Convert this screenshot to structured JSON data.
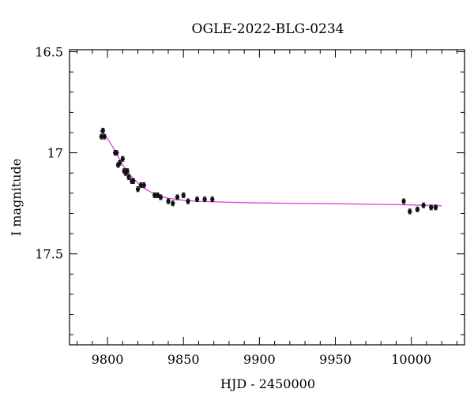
{
  "chart_data": {
    "type": "scatter",
    "title": "OGLE-2022-BLG-0234",
    "xlabel": "HJD - 2450000",
    "ylabel": "I magnitude",
    "xlim": [
      9775,
      10035
    ],
    "ylim": [
      17.95,
      16.49
    ],
    "y_inverted": true,
    "x_ticks": [
      9800,
      9850,
      9900,
      9950,
      10000
    ],
    "x_tick_labels": [
      "9800",
      "9850",
      "9900",
      "9950",
      "10000"
    ],
    "y_ticks": [
      16.5,
      17,
      17.5
    ],
    "y_tick_labels": [
      "16.5",
      "17",
      "17.5"
    ],
    "colors": {
      "points": "#111111",
      "model": "#e040e0",
      "axes": "#000000"
    },
    "series": [
      {
        "kind": "points_with_errors",
        "x": [
          9796,
          9797,
          9798,
          9805,
          9806,
          9807,
          9808,
          9810,
          9811,
          9812,
          9813,
          9814,
          9816,
          9817,
          9820,
          9822,
          9824,
          9831,
          9833,
          9835,
          9840,
          9843,
          9846,
          9850,
          9853,
          9859,
          9864,
          9869,
          9995,
          9999,
          10004,
          10008,
          10013,
          10016
        ],
        "y": [
          16.92,
          16.89,
          16.92,
          17.0,
          17.0,
          17.06,
          17.05,
          17.03,
          17.09,
          17.1,
          17.09,
          17.12,
          17.14,
          17.14,
          17.18,
          17.16,
          17.16,
          17.21,
          17.21,
          17.22,
          17.24,
          17.25,
          17.22,
          17.21,
          17.24,
          17.23,
          17.23,
          17.23,
          17.24,
          17.29,
          17.28,
          17.26,
          17.27,
          17.27
        ],
        "yerr": [
          0.01,
          0.01,
          0.01,
          0.01,
          0.01,
          0.01,
          0.01,
          0.01,
          0.01,
          0.01,
          0.01,
          0.01,
          0.01,
          0.01,
          0.012,
          0.01,
          0.01,
          0.01,
          0.01,
          0.012,
          0.012,
          0.012,
          0.01,
          0.01,
          0.012,
          0.01,
          0.01,
          0.01,
          0.01,
          0.01,
          0.01,
          0.01,
          0.01,
          0.01
        ]
      },
      {
        "kind": "model_curve",
        "x": [
          9795,
          9800,
          9805,
          9810,
          9815,
          9820,
          9825,
          9830,
          9835,
          9840,
          9850,
          9860,
          9880,
          9900,
          9950,
          10000,
          10020
        ],
        "y": [
          16.89,
          16.93,
          16.99,
          17.06,
          17.11,
          17.15,
          17.18,
          17.2,
          17.215,
          17.225,
          17.235,
          17.24,
          17.245,
          17.248,
          17.252,
          17.258,
          17.262
        ]
      }
    ]
  }
}
